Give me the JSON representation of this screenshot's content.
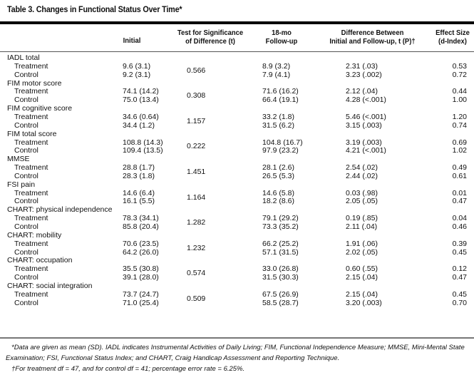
{
  "title": "Table 3. Changes in Functional Status Over Time*",
  "headers": {
    "initial": "Initial",
    "test_line1": "Test for Significance",
    "test_line2": "of Difference (t)",
    "followup_line1": "18-mo",
    "followup_line2": "Follow-up",
    "diff_line1": "Difference Between",
    "diff_line2": "Initial and Follow-up, t (P)†",
    "effect_line1": "Effect Size",
    "effect_line2": "(d-Index)"
  },
  "groups": [
    {
      "label": "IADL total",
      "t": "0.566",
      "rows": [
        {
          "label": "Treatment",
          "initial": "9.6 (3.1)",
          "followup": "8.9 (3.2)",
          "diff": "2.31 (.03)",
          "effect": "0.53"
        },
        {
          "label": "Control",
          "initial": "9.2 (3.1)",
          "followup": "7.9 (4.1)",
          "diff": "3.23 (.002)",
          "effect": "0.72"
        }
      ]
    },
    {
      "label": "FIM motor score",
      "t": "0.308",
      "rows": [
        {
          "label": "Treatment",
          "initial": "74.1 (14.2)",
          "followup": "71.6 (16.2)",
          "diff": "2.12 (.04)",
          "effect": "0.44"
        },
        {
          "label": "Control",
          "initial": "75.0 (13.4)",
          "followup": "66.4 (19.1)",
          "diff": "4.28 (<.001)",
          "effect": "1.00"
        }
      ]
    },
    {
      "label": "FIM cognitive score",
      "t": "1.157",
      "rows": [
        {
          "label": "Treatment",
          "initial": "34.6 (0.64)",
          "followup": "33.2 (1.8)",
          "diff": "5.46 (<.001)",
          "effect": "1.20"
        },
        {
          "label": "Control",
          "initial": "34.4 (1.2)",
          "followup": "31.5 (6.2)",
          "diff": "3.15 (.003)",
          "effect": "0.74"
        }
      ]
    },
    {
      "label": "FIM total score",
      "t": "0.222",
      "rows": [
        {
          "label": "Treatment",
          "initial": "108.8 (14.3)",
          "followup": "104.8 (16.7)",
          "diff": "3.19 (.003)",
          "effect": "0.69"
        },
        {
          "label": "Control",
          "initial": "109.4 (13.5)",
          "followup": "97.9 (23.2)",
          "diff": "4.21 (<.001)",
          "effect": "1.02"
        }
      ]
    },
    {
      "label": "MMSE",
      "t": "1.451",
      "rows": [
        {
          "label": "Treatment",
          "initial": "28.8 (1.7)",
          "followup": "28.1 (2.6)",
          "diff": "2.54 (.02)",
          "effect": "0.49"
        },
        {
          "label": "Control",
          "initial": "28.3 (1.8)",
          "followup": "26.5 (5.3)",
          "diff": "2.44 (.02)",
          "effect": "0.61"
        }
      ]
    },
    {
      "label": "FSI pain",
      "t": "1.164",
      "rows": [
        {
          "label": "Treatment",
          "initial": "14.6 (6.4)",
          "followup": "14.6 (5.8)",
          "diff": "0.03 (.98)",
          "effect": "0.01"
        },
        {
          "label": "Control",
          "initial": "16.1 (5.5)",
          "followup": "18.2 (8.6)",
          "diff": "2.05 (.05)",
          "effect": "0.47"
        }
      ]
    },
    {
      "label": "CHART: physical independence",
      "t": "1.282",
      "rows": [
        {
          "label": "Treatment",
          "initial": "78.3 (34.1)",
          "followup": "79.1 (29.2)",
          "diff": "0.19 (.85)",
          "effect": "0.04"
        },
        {
          "label": "Control",
          "initial": "85.8 (20.4)",
          "followup": "73.3 (35.2)",
          "diff": "2.11 (.04)",
          "effect": "0.46"
        }
      ]
    },
    {
      "label": "CHART: mobility",
      "t": "1.232",
      "rows": [
        {
          "label": "Treatment",
          "initial": "70.6 (23.5)",
          "followup": "66.2 (25.2)",
          "diff": "1.91 (.06)",
          "effect": "0.39"
        },
        {
          "label": "Control",
          "initial": "64.2 (26.0)",
          "followup": "57.1 (31.5)",
          "diff": "2.02 (.05)",
          "effect": "0.45"
        }
      ]
    },
    {
      "label": "CHART: occupation",
      "t": "0.574",
      "rows": [
        {
          "label": "Treatment",
          "initial": "35.5 (30.8)",
          "followup": "33.0 (26.8)",
          "diff": "0.60 (.55)",
          "effect": "0.12"
        },
        {
          "label": "Control",
          "initial": "39.1 (28.0)",
          "followup": "31.5 (30.3)",
          "diff": "2.15 (.04)",
          "effect": "0.47"
        }
      ]
    },
    {
      "label": "CHART: social integration",
      "t": "0.509",
      "rows": [
        {
          "label": "Treatment",
          "initial": "73.7 (24.7)",
          "followup": "67.5 (26.9)",
          "diff": "2.15 (.04)",
          "effect": "0.45"
        },
        {
          "label": "Control",
          "initial": "71.0 (25.4)",
          "followup": "58.5 (28.7)",
          "diff": "3.20 (.003)",
          "effect": "0.70"
        }
      ]
    }
  ],
  "footnotes": [
    "*Data are given as mean (SD). IADL indicates Instrumental Activities of Daily Living; FIM, Functional Independence Measure; MMSE, Mini-Mental State Examination; FSI, Functional Status Index; and CHART, Craig Handicap Assessment and Reporting Technique.",
    "†For treatment df = 47, and for control df = 41; percentage error rate = 6.25%."
  ]
}
